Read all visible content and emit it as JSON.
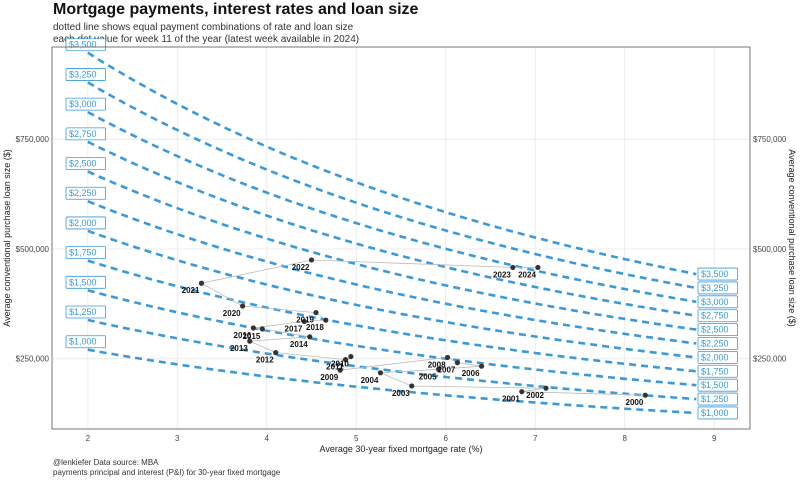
{
  "title": "Mortgage payments, interest rates and loan size",
  "subtitle_line1": "dotted line shows equal payment combinations of rate and loan size",
  "subtitle_line2": "each dot value for week 11 of the year (latest week available in 2024)",
  "caption_line1": "@lenkiefer Data source: MBA",
  "caption_line2": "payments principal and interest (P&I) for 30-year fixed mortgage",
  "colors": {
    "curve": "#3a9ad9",
    "path": "#bbbbbb",
    "dot": "#333333",
    "grid": "#ececec",
    "panel_border": "#555555"
  },
  "chart_data": {
    "type": "scatter",
    "xlabel": "Average 30-year fixed mortgage rate (%)",
    "ylabel": "Average conventional purchase loan size ($)",
    "xlim": [
      1.6,
      9.4
    ],
    "ylim": [
      90000,
      960000
    ],
    "x_ticks": [
      2,
      3,
      4,
      5,
      6,
      7,
      8,
      9
    ],
    "y_ticks": [
      250000,
      500000,
      750000
    ],
    "y_tick_labels": [
      "$250,000",
      "$500,000",
      "$750,000"
    ],
    "grid": true,
    "payment_curves": {
      "rate_range": [
        2.0,
        8.8
      ],
      "payments": [
        1000,
        1250,
        1500,
        1750,
        2000,
        2250,
        2500,
        2750,
        3000,
        3250,
        3500
      ],
      "labels": [
        "$1,000",
        "$1,250",
        "$1,500",
        "$1,750",
        "$2,000",
        "$2,250",
        "$2,500",
        "$2,750",
        "$3,000",
        "$3,250",
        "$3,500"
      ]
    },
    "points": [
      {
        "year": "2000",
        "rate": 8.23,
        "loan": 167000
      },
      {
        "year": "2001",
        "rate": 6.85,
        "loan": 175000
      },
      {
        "year": "2002",
        "rate": 7.12,
        "loan": 183000
      },
      {
        "year": "2003",
        "rate": 5.62,
        "loan": 188000
      },
      {
        "year": "2004",
        "rate": 5.27,
        "loan": 218000
      },
      {
        "year": "2005",
        "rate": 5.92,
        "loan": 226000
      },
      {
        "year": "2006",
        "rate": 6.4,
        "loan": 233000
      },
      {
        "year": "2007",
        "rate": 6.13,
        "loan": 241000
      },
      {
        "year": "2008",
        "rate": 6.02,
        "loan": 253000
      },
      {
        "year": "2009",
        "rate": 4.82,
        "loan": 224000
      },
      {
        "year": "2010",
        "rate": 4.94,
        "loan": 255000
      },
      {
        "year": "2011",
        "rate": 4.88,
        "loan": 248000
      },
      {
        "year": "2012",
        "rate": 4.1,
        "loan": 264000
      },
      {
        "year": "2013",
        "rate": 3.81,
        "loan": 290000
      },
      {
        "year": "2014",
        "rate": 4.48,
        "loan": 300000
      },
      {
        "year": "2015",
        "rate": 3.95,
        "loan": 318000
      },
      {
        "year": "2016",
        "rate": 3.85,
        "loan": 320000
      },
      {
        "year": "2017",
        "rate": 4.42,
        "loan": 335000
      },
      {
        "year": "2018",
        "rate": 4.66,
        "loan": 338000
      },
      {
        "year": "2019",
        "rate": 4.55,
        "loan": 355000
      },
      {
        "year": "2020",
        "rate": 3.73,
        "loan": 370000
      },
      {
        "year": "2021",
        "rate": 3.27,
        "loan": 422000
      },
      {
        "year": "2022",
        "rate": 4.5,
        "loan": 475000
      },
      {
        "year": "2023",
        "rate": 6.75,
        "loan": 458000
      },
      {
        "year": "2024",
        "rate": 7.03,
        "loan": 458000
      }
    ]
  }
}
